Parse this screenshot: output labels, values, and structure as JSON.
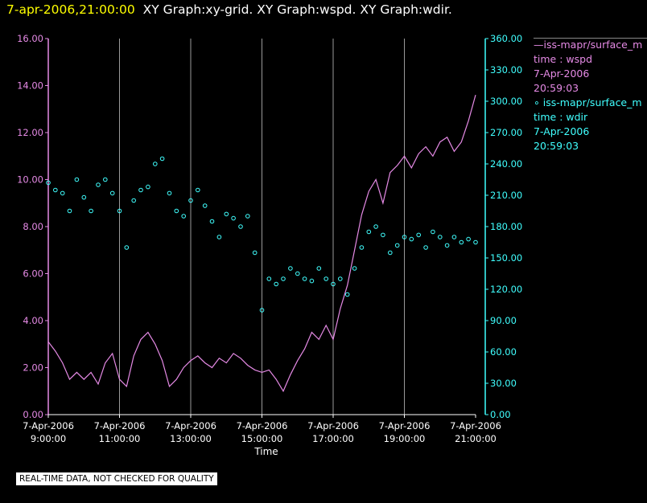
{
  "header": {
    "timestamp": "7-apr-2006,21:00:00",
    "graphs": "XY Graph:xy-grid.  XY Graph:wspd.  XY Graph:wdir."
  },
  "footer": {
    "quality_note": "REAL-TIME DATA, NOT CHECKED FOR QUALITY"
  },
  "colors": {
    "wspd": "#e58ae5",
    "wdir": "#40ffff",
    "grid": "#9a9a9a",
    "axis_text": "#ffffff"
  },
  "chart_data": {
    "type": "line",
    "xlabel": "Time",
    "x_ticks": [
      {
        "date": "7-Apr-2006",
        "time": "9:00:00",
        "hour": 9
      },
      {
        "date": "7-Apr-2006",
        "time": "11:00:00",
        "hour": 11
      },
      {
        "date": "7-Apr-2006",
        "time": "13:00:00",
        "hour": 13
      },
      {
        "date": "7-Apr-2006",
        "time": "15:00:00",
        "hour": 15
      },
      {
        "date": "7-Apr-2006",
        "time": "17:00:00",
        "hour": 17
      },
      {
        "date": "7-Apr-2006",
        "time": "19:00:00",
        "hour": 19
      },
      {
        "date": "7-Apr-2006",
        "time": "21:00:00",
        "hour": 21
      }
    ],
    "xlim": [
      9,
      21
    ],
    "left_axis": {
      "ylim": [
        0,
        16
      ],
      "ticks": [
        "0.00",
        "2.00",
        "4.00",
        "6.00",
        "8.00",
        "10.00",
        "12.00",
        "14.00",
        "16.00"
      ]
    },
    "right_axis": {
      "ylim": [
        0,
        360
      ],
      "ticks": [
        "0.00",
        "30.00",
        "60.00",
        "90.00",
        "120.00",
        "150.00",
        "180.00",
        "210.00",
        "240.00",
        "270.00",
        "300.00",
        "330.00",
        "360.00"
      ]
    },
    "legend": [
      {
        "series": "wspd",
        "lines": [
          "—iss-mapr/surface_m",
          "time : wspd",
          "7-Apr-2006",
          "20:59:03"
        ]
      },
      {
        "series": "wdir",
        "lines": [
          "∘ iss-mapr/surface_m",
          "time : wdir",
          "7-Apr-2006",
          "20:59:03"
        ]
      }
    ],
    "series": [
      {
        "key": "wspd",
        "style": "line",
        "axis": "left",
        "points": [
          [
            9.0,
            3.1
          ],
          [
            9.2,
            2.7
          ],
          [
            9.4,
            2.2
          ],
          [
            9.6,
            1.5
          ],
          [
            9.8,
            1.8
          ],
          [
            10.0,
            1.5
          ],
          [
            10.2,
            1.8
          ],
          [
            10.4,
            1.3
          ],
          [
            10.6,
            2.2
          ],
          [
            10.8,
            2.6
          ],
          [
            11.0,
            1.5
          ],
          [
            11.2,
            1.2
          ],
          [
            11.4,
            2.5
          ],
          [
            11.6,
            3.2
          ],
          [
            11.8,
            3.5
          ],
          [
            12.0,
            3.0
          ],
          [
            12.2,
            2.3
          ],
          [
            12.4,
            1.2
          ],
          [
            12.6,
            1.5
          ],
          [
            12.8,
            2.0
          ],
          [
            13.0,
            2.3
          ],
          [
            13.2,
            2.5
          ],
          [
            13.4,
            2.2
          ],
          [
            13.6,
            2.0
          ],
          [
            13.8,
            2.4
          ],
          [
            14.0,
            2.2
          ],
          [
            14.2,
            2.6
          ],
          [
            14.4,
            2.4
          ],
          [
            14.6,
            2.1
          ],
          [
            14.8,
            1.9
          ],
          [
            15.0,
            1.8
          ],
          [
            15.2,
            1.9
          ],
          [
            15.4,
            1.5
          ],
          [
            15.6,
            1.0
          ],
          [
            15.8,
            1.7
          ],
          [
            16.0,
            2.3
          ],
          [
            16.2,
            2.8
          ],
          [
            16.4,
            3.5
          ],
          [
            16.6,
            3.2
          ],
          [
            16.8,
            3.8
          ],
          [
            17.0,
            3.2
          ],
          [
            17.2,
            4.5
          ],
          [
            17.4,
            5.5
          ],
          [
            17.6,
            7.0
          ],
          [
            17.8,
            8.5
          ],
          [
            18.0,
            9.5
          ],
          [
            18.2,
            10.0
          ],
          [
            18.4,
            9.0
          ],
          [
            18.6,
            10.3
          ],
          [
            18.8,
            10.6
          ],
          [
            19.0,
            11.0
          ],
          [
            19.2,
            10.5
          ],
          [
            19.4,
            11.1
          ],
          [
            19.6,
            11.4
          ],
          [
            19.8,
            11.0
          ],
          [
            20.0,
            11.6
          ],
          [
            20.2,
            11.8
          ],
          [
            20.4,
            11.2
          ],
          [
            20.6,
            11.6
          ],
          [
            20.8,
            12.5
          ],
          [
            21.0,
            13.6
          ]
        ]
      },
      {
        "key": "wdir",
        "style": "scatter",
        "axis": "right",
        "points": [
          [
            9.0,
            222
          ],
          [
            9.2,
            215
          ],
          [
            9.4,
            212
          ],
          [
            9.6,
            195
          ],
          [
            9.8,
            225
          ],
          [
            10.0,
            208
          ],
          [
            10.2,
            195
          ],
          [
            10.4,
            220
          ],
          [
            10.6,
            225
          ],
          [
            10.8,
            212
          ],
          [
            11.0,
            195
          ],
          [
            11.2,
            160
          ],
          [
            11.4,
            205
          ],
          [
            11.6,
            215
          ],
          [
            11.8,
            218
          ],
          [
            12.0,
            240
          ],
          [
            12.2,
            245
          ],
          [
            12.4,
            212
          ],
          [
            12.6,
            195
          ],
          [
            12.8,
            190
          ],
          [
            13.0,
            205
          ],
          [
            13.2,
            215
          ],
          [
            13.4,
            200
          ],
          [
            13.6,
            185
          ],
          [
            13.8,
            170
          ],
          [
            14.0,
            192
          ],
          [
            14.2,
            188
          ],
          [
            14.4,
            180
          ],
          [
            14.6,
            190
          ],
          [
            14.8,
            155
          ],
          [
            15.0,
            100
          ],
          [
            15.2,
            130
          ],
          [
            15.4,
            125
          ],
          [
            15.6,
            130
          ],
          [
            15.8,
            140
          ],
          [
            16.0,
            135
          ],
          [
            16.2,
            130
          ],
          [
            16.4,
            128
          ],
          [
            16.6,
            140
          ],
          [
            16.8,
            130
          ],
          [
            17.0,
            125
          ],
          [
            17.2,
            130
          ],
          [
            17.4,
            115
          ],
          [
            17.6,
            140
          ],
          [
            17.8,
            160
          ],
          [
            18.0,
            175
          ],
          [
            18.2,
            180
          ],
          [
            18.4,
            172
          ],
          [
            18.6,
            155
          ],
          [
            18.8,
            162
          ],
          [
            19.0,
            170
          ],
          [
            19.2,
            168
          ],
          [
            19.4,
            172
          ],
          [
            19.6,
            160
          ],
          [
            19.8,
            175
          ],
          [
            20.0,
            170
          ],
          [
            20.2,
            162
          ],
          [
            20.4,
            170
          ],
          [
            20.6,
            165
          ],
          [
            20.8,
            168
          ],
          [
            21.0,
            165
          ]
        ]
      }
    ]
  }
}
